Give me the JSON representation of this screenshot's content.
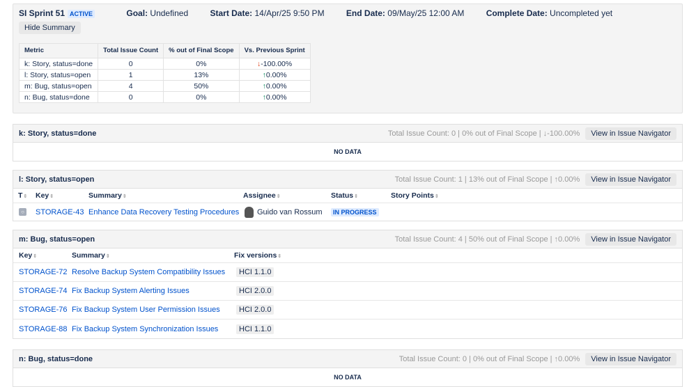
{
  "sprint": {
    "name": "SI Sprint 51",
    "state": "ACTIVE",
    "goal_label": "Goal:",
    "goal": "Undefined",
    "start_label": "Start Date:",
    "start": "14/Apr/25 9:50 PM",
    "end_label": "End Date:",
    "end": "09/May/25 12:00 AM",
    "complete_label": "Complete Date:",
    "complete": "Uncompleted yet",
    "hide_summary": "Hide Summary"
  },
  "metrics": {
    "headers": [
      "Metric",
      "Total Issue Count",
      "% out of Final Scope",
      "Vs. Previous Sprint"
    ],
    "rows": [
      {
        "metric": "k: Story, status=done",
        "count": "0",
        "pct": "0%",
        "arrow": "↓",
        "vs": "-100.00%"
      },
      {
        "metric": "l: Story, status=open",
        "count": "1",
        "pct": "13%",
        "arrow": "↑",
        "vs": "0.00%"
      },
      {
        "metric": "m: Bug, status=open",
        "count": "4",
        "pct": "50%",
        "arrow": "↑",
        "vs": "0.00%"
      },
      {
        "metric": "n: Bug, status=done",
        "count": "0",
        "pct": "0%",
        "arrow": "↑",
        "vs": "0.00%"
      }
    ]
  },
  "view_btn": "View in Issue Navigator",
  "no_data": "NO DATA",
  "sections": {
    "k": {
      "title": "k: Story, status=done",
      "stats": "Total Issue Count: 0 | 0% out of Final Scope | ↓-100.00%"
    },
    "l": {
      "title": "l: Story, status=open",
      "stats": "Total Issue Count: 1 | 13% out of Final Scope | ↑0.00%",
      "headers": [
        "T",
        "Key",
        "Summary",
        "Assignee",
        "Status",
        "Story Points"
      ],
      "rows": [
        {
          "key": "STORAGE-43",
          "summary": "Enhance Data Recovery Testing Procedures",
          "assignee": "Guido van Rossum",
          "status": "IN PROGRESS"
        }
      ]
    },
    "m": {
      "title": "m: Bug, status=open",
      "stats": "Total Issue Count: 4 | 50% out of Final Scope | ↑0.00%",
      "headers": [
        "Key",
        "Summary",
        "Fix versions"
      ],
      "rows": [
        {
          "key": "STORAGE-72",
          "summary": "Resolve Backup System Compatibility Issues",
          "fix": "HCI 1.1.0"
        },
        {
          "key": "STORAGE-74",
          "summary": "Fix Backup System Alerting Issues",
          "fix": "HCI 2.0.0"
        },
        {
          "key": "STORAGE-76",
          "summary": "Fix Backup System User Permission Issues",
          "fix": "HCI 2.0.0"
        },
        {
          "key": "STORAGE-88",
          "summary": "Fix Backup System Synchronization Issues",
          "fix": "HCI 1.1.0"
        }
      ]
    },
    "n": {
      "title": "n: Bug, status=done",
      "stats": "Total Issue Count: 0 | 0% out of Final Scope | ↑0.00%"
    }
  }
}
